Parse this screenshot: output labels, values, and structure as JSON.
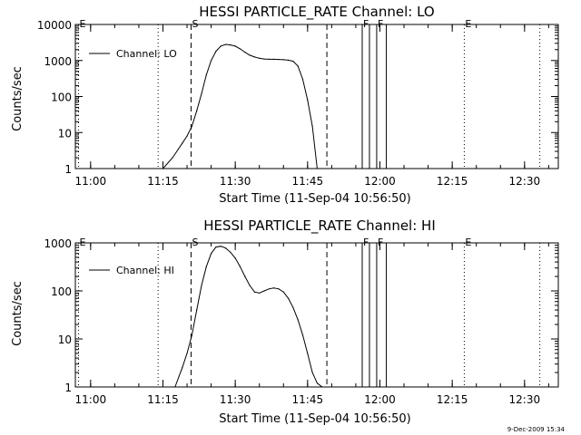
{
  "chart_data": [
    {
      "type": "line",
      "title": "HESSI PARTICLE_RATE Channel: LO",
      "xlabel": "Start Time (11-Sep-04 10:56:50)",
      "ylabel": "Counts/sec",
      "yscale": "log",
      "xlim": [
        "10:56:50",
        "12:37:00"
      ],
      "ylim": [
        1,
        10000
      ],
      "x_ticks": [
        "11:00",
        "11:15",
        "11:30",
        "11:45",
        "12:00",
        "12:15",
        "12:30"
      ],
      "y_ticks": [
        "1",
        "10",
        "100",
        "1000",
        "10000"
      ],
      "grid": false,
      "legend": {
        "position": "top-left",
        "entries": [
          "Channel: LO"
        ]
      },
      "series": [
        {
          "name": "Channel: LO",
          "x": [
            "11:15:00",
            "11:17:00",
            "11:19:00",
            "11:20:00",
            "11:21:00",
            "11:22:00",
            "11:23:00",
            "11:24:00",
            "11:25:00",
            "11:26:00",
            "11:27:00",
            "11:28:00",
            "11:29:00",
            "11:30:00",
            "11:31:00",
            "11:32:00",
            "11:33:00",
            "11:34:00",
            "11:35:00",
            "11:36:00",
            "11:37:00",
            "11:38:00",
            "11:39:00",
            "11:40:00",
            "11:41:00",
            "11:42:00",
            "11:43:00",
            "11:44:00",
            "11:45:00",
            "11:46:00",
            "11:47:00"
          ],
          "values": [
            1,
            2,
            5,
            8,
            15,
            40,
            120,
            400,
            1000,
            1800,
            2500,
            2800,
            2700,
            2500,
            2100,
            1700,
            1400,
            1250,
            1150,
            1100,
            1080,
            1080,
            1070,
            1050,
            1020,
            950,
            700,
            300,
            80,
            15,
            1
          ]
        }
      ],
      "vertical_markers": [
        {
          "time": "10:57:30",
          "style": "dotted",
          "label": "E"
        },
        {
          "time": "11:14:00",
          "style": "dotted",
          "label": ""
        },
        {
          "time": "11:20:50",
          "style": "dashed",
          "label": "S"
        },
        {
          "time": "11:49:00",
          "style": "dashed",
          "label": ""
        },
        {
          "time": "11:56:20",
          "style": "solid",
          "label": "F"
        },
        {
          "time": "11:57:50",
          "style": "solid",
          "label": ""
        },
        {
          "time": "11:59:20",
          "style": "solid",
          "label": "F"
        },
        {
          "time": "12:01:20",
          "style": "solid",
          "label": ""
        },
        {
          "time": "12:17:30",
          "style": "dotted",
          "label": "E"
        },
        {
          "time": "12:33:10",
          "style": "dotted",
          "label": ""
        }
      ]
    },
    {
      "type": "line",
      "title": "HESSI PARTICLE_RATE Channel: HI",
      "xlabel": "Start Time (11-Sep-04 10:56:50)",
      "ylabel": "Counts/sec",
      "yscale": "log",
      "xlim": [
        "10:56:50",
        "12:37:00"
      ],
      "ylim": [
        1,
        1000
      ],
      "x_ticks": [
        "11:00",
        "11:15",
        "11:30",
        "11:45",
        "12:00",
        "12:15",
        "12:30"
      ],
      "y_ticks": [
        "1",
        "10",
        "100",
        "1000"
      ],
      "grid": false,
      "legend": {
        "position": "top-left",
        "entries": [
          "Channel: HI"
        ]
      },
      "series": [
        {
          "name": "Channel: HI",
          "x": [
            "11:17:30",
            "11:19:00",
            "11:20:00",
            "11:21:00",
            "11:22:00",
            "11:23:00",
            "11:24:00",
            "11:25:00",
            "11:26:00",
            "11:27:00",
            "11:28:00",
            "11:29:00",
            "11:30:00",
            "11:31:00",
            "11:32:00",
            "11:33:00",
            "11:34:00",
            "11:35:00",
            "11:36:00",
            "11:37:00",
            "11:38:00",
            "11:39:00",
            "11:40:00",
            "11:41:00",
            "11:42:00",
            "11:43:00",
            "11:44:00",
            "11:45:00",
            "11:46:00",
            "11:47:00",
            "11:48:00"
          ],
          "values": [
            1,
            2.5,
            5,
            12,
            40,
            130,
            320,
            600,
            820,
            850,
            780,
            640,
            480,
            320,
            200,
            130,
            95,
            90,
            100,
            110,
            115,
            110,
            95,
            70,
            45,
            25,
            12,
            5,
            2,
            1.2,
            1
          ]
        }
      ],
      "vertical_markers": [
        {
          "time": "10:57:30",
          "style": "dotted",
          "label": "E"
        },
        {
          "time": "11:14:00",
          "style": "dotted",
          "label": ""
        },
        {
          "time": "11:20:50",
          "style": "dashed",
          "label": "S"
        },
        {
          "time": "11:49:00",
          "style": "dashed",
          "label": ""
        },
        {
          "time": "11:56:20",
          "style": "solid",
          "label": "F"
        },
        {
          "time": "11:57:50",
          "style": "solid",
          "label": ""
        },
        {
          "time": "11:59:20",
          "style": "solid",
          "label": "F"
        },
        {
          "time": "12:01:20",
          "style": "solid",
          "label": ""
        },
        {
          "time": "12:17:30",
          "style": "dotted",
          "label": "E"
        },
        {
          "time": "12:33:10",
          "style": "dotted",
          "label": ""
        }
      ]
    }
  ],
  "footer": {
    "timestamp": "9-Dec-2009 15:34"
  }
}
